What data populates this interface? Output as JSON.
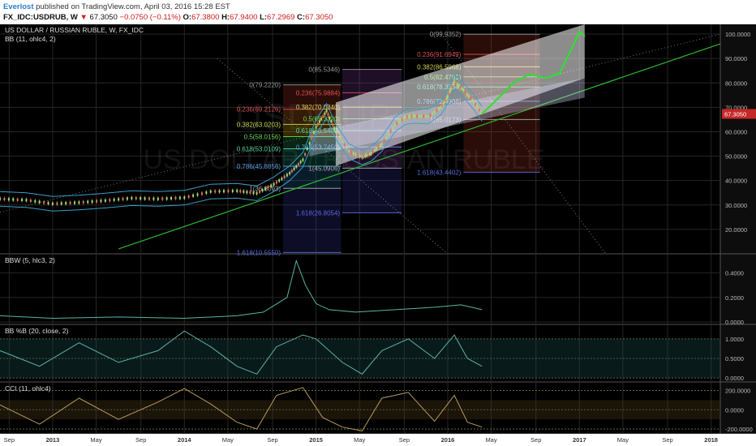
{
  "header": {
    "author": "Everlost",
    "published": "published on TradingView.com, April 03, 2016 15:28 EST",
    "symbol": "FX_IDC:USDRUB, W",
    "price": "67.3050",
    "change": "−0.0750 (−0.11%)",
    "open_label": "O:",
    "open": "67.3800",
    "high_label": "H:",
    "high": "67.9400",
    "low_label": "L:",
    "low": "67.2969",
    "close_label": "C:",
    "close": "67.3050"
  },
  "colors": {
    "background": "#000000",
    "grid": "#262626",
    "candle_up": "#a8d870",
    "candle_down": "#e0706a",
    "bollinger": "#3aa0c8",
    "trend_line": "#2db82d",
    "forecast": "#33dd33",
    "last_price_tag": "#c62828",
    "indicator_line": "#5ab4a8",
    "cci_line": "#b89a5a"
  },
  "chart_data": [
    {
      "type": "line",
      "title": "US DOLLAR / RUSSIAN RUBLE, W, FX_IDC",
      "indicator": "BB (11, ohlc4, 2)",
      "watermark": "US DOLLAR / RUSSIAN RUBLE",
      "watermark_symbol": "USDRUB",
      "ylim": [
        10,
        104
      ],
      "yticks": [
        "100.0000",
        "90.0000",
        "80.0000",
        "70.0000",
        "60.0000",
        "50.0000",
        "40.0000",
        "30.0000",
        "20.0000"
      ],
      "last_price": "67.3050",
      "series": [
        {
          "x": [
            2012.6,
            2012.8,
            2013.0,
            2013.2,
            2013.4,
            2013.6,
            2013.8,
            2014.0,
            2014.2,
            2014.4,
            2014.55,
            2014.68,
            2014.8,
            2014.9,
            2015.0,
            2015.08,
            2015.15,
            2015.25,
            2015.35,
            2015.42,
            2015.5,
            2015.6,
            2015.68,
            2015.75,
            2015.85,
            2015.95,
            2016.0,
            2016.05,
            2016.12,
            2016.2,
            2016.26
          ],
          "y": [
            32.5,
            32.0,
            30.5,
            31.0,
            31.8,
            32.8,
            32.5,
            33.0,
            35.5,
            35.8,
            34.8,
            38.5,
            43.0,
            48.5,
            62.0,
            68.5,
            60.0,
            52.0,
            49.5,
            51.0,
            55.0,
            63.0,
            66.0,
            66.5,
            66.2,
            70.0,
            74.5,
            80.5,
            77.0,
            72.0,
            67.3
          ]
        },
        {
          "name": "forecast",
          "x": [
            2016.26,
            2016.35,
            2016.5,
            2016.62,
            2016.75,
            2016.85,
            2016.95,
            2017.0,
            2017.04
          ],
          "y": [
            67.3,
            72.0,
            80.0,
            83.5,
            82.0,
            84.0,
            95.0,
            101.0,
            99.0
          ]
        }
      ]
    },
    {
      "type": "line",
      "title": "BBW (5, hlc3, 2)",
      "yticks": [
        "0.4000",
        "0.2000",
        "0.0000"
      ],
      "ylim": [
        -0.02,
        0.55
      ],
      "series": [
        {
          "x": [
            2012.6,
            2013.0,
            2013.5,
            2014.0,
            2014.4,
            2014.6,
            2014.78,
            2014.85,
            2014.92,
            2015.0,
            2015.1,
            2015.3,
            2015.6,
            2015.9,
            2016.1,
            2016.26
          ],
          "y": [
            0.05,
            0.03,
            0.04,
            0.03,
            0.05,
            0.08,
            0.2,
            0.5,
            0.3,
            0.15,
            0.1,
            0.08,
            0.1,
            0.12,
            0.14,
            0.1
          ]
        }
      ]
    },
    {
      "type": "line",
      "title": "BB %B (20, close, 2)",
      "yticks": [
        "1.0000",
        "0.5000",
        "0.0000"
      ],
      "ylim": [
        -0.1,
        1.35
      ],
      "series": [
        {
          "x": [
            2012.6,
            2012.9,
            2013.2,
            2013.5,
            2013.8,
            2014.0,
            2014.2,
            2014.4,
            2014.55,
            2014.7,
            2014.9,
            2015.0,
            2015.2,
            2015.35,
            2015.5,
            2015.7,
            2015.9,
            2016.05,
            2016.15,
            2016.26
          ],
          "y": [
            0.7,
            0.3,
            0.9,
            0.4,
            0.7,
            1.2,
            0.8,
            0.3,
            0.1,
            0.8,
            1.1,
            1.0,
            0.4,
            0.1,
            0.7,
            1.0,
            0.5,
            1.1,
            0.5,
            0.3
          ]
        }
      ]
    },
    {
      "type": "line",
      "title": "CCI (11, ohlc4)",
      "yticks": [
        "200.0000",
        "0.0000",
        "-200.0000"
      ],
      "ylim": [
        -250,
        280
      ],
      "series": [
        {
          "x": [
            2012.6,
            2012.9,
            2013.2,
            2013.5,
            2013.8,
            2014.0,
            2014.2,
            2014.4,
            2014.55,
            2014.7,
            2014.9,
            2015.05,
            2015.2,
            2015.35,
            2015.5,
            2015.7,
            2015.9,
            2016.05,
            2016.15,
            2016.26
          ],
          "y": [
            50,
            -150,
            120,
            -100,
            80,
            220,
            60,
            -130,
            -200,
            150,
            230,
            -80,
            -180,
            -220,
            120,
            180,
            -120,
            150,
            -130,
            -180
          ]
        }
      ]
    }
  ],
  "time_axis": {
    "labels": [
      "Sep",
      "2013",
      "May",
      "Sep",
      "2014",
      "May",
      "Sep",
      "2015",
      "May",
      "Sep",
      "2016",
      "May",
      "Sep",
      "2017",
      "May",
      "Sep",
      "2018"
    ],
    "values": [
      2012.67,
      2013.0,
      2013.33,
      2013.67,
      2014.0,
      2014.33,
      2014.67,
      2015.0,
      2015.33,
      2015.67,
      2016.0,
      2016.33,
      2016.67,
      2017.0,
      2017.33,
      2017.67,
      2018.0
    ],
    "xlim": [
      2012.6,
      2018.07
    ]
  },
  "fibonacci_sets": [
    {
      "x_range": [
        2014.75,
        2015.19
      ],
      "color": "#c0392b",
      "levels": [
        {
          "label": "0(79.2220)",
          "value": 79.222
        },
        {
          "label": "0.236(69.2126)",
          "value": 69.2126
        },
        {
          "label": "0.382(63.0203)",
          "value": 63.0203
        },
        {
          "label": "0.5(58.0156)",
          "value": 58.0156
        },
        {
          "label": "0.618(53.0109)",
          "value": 53.0109
        },
        {
          "label": "0.786(45.8856)",
          "value": 45.8856
        },
        {
          "label": "1(36.8093)",
          "value": 36.8093
        },
        {
          "label": "1.618(10.5550)",
          "value": 10.555
        }
      ]
    },
    {
      "x_range": [
        2015.2,
        2015.65
      ],
      "color": "#8e44ad",
      "levels": [
        {
          "label": "0(85.5346)",
          "value": 85.5346
        },
        {
          "label": "0.236(75.9884)",
          "value": 75.9884
        },
        {
          "label": "0.382(70.0840)",
          "value": 70.084
        },
        {
          "label": "0.5(65.3120)",
          "value": 65.312
        },
        {
          "label": "0.618(60.5400)",
          "value": 60.54
        },
        {
          "label": "0.786(53.7450)",
          "value": 53.745
        },
        {
          "label": "1(45.0906)",
          "value": 45.0906
        },
        {
          "label": "1.618(26.8054)",
          "value": 26.8054
        }
      ]
    },
    {
      "x_range": [
        2016.12,
        2016.7
      ],
      "color": "#c0392b",
      "levels": [
        {
          "label": "0(99.9352)",
          "value": 99.9352
        },
        {
          "label": "0.236(91.6949)",
          "value": 91.6949
        },
        {
          "label": "0.382(86.5968)",
          "value": 86.5968
        },
        {
          "label": "0.5(82.4761)",
          "value": 82.4761
        },
        {
          "label": "0.618(78.3554)",
          "value": 78.3554
        },
        {
          "label": "0.786(72.4908)",
          "value": 72.4908
        },
        {
          "label": "1(65.0173)",
          "value": 65.0173
        },
        {
          "label": "1.618(43.4402)",
          "value": 43.4402
        }
      ]
    }
  ]
}
